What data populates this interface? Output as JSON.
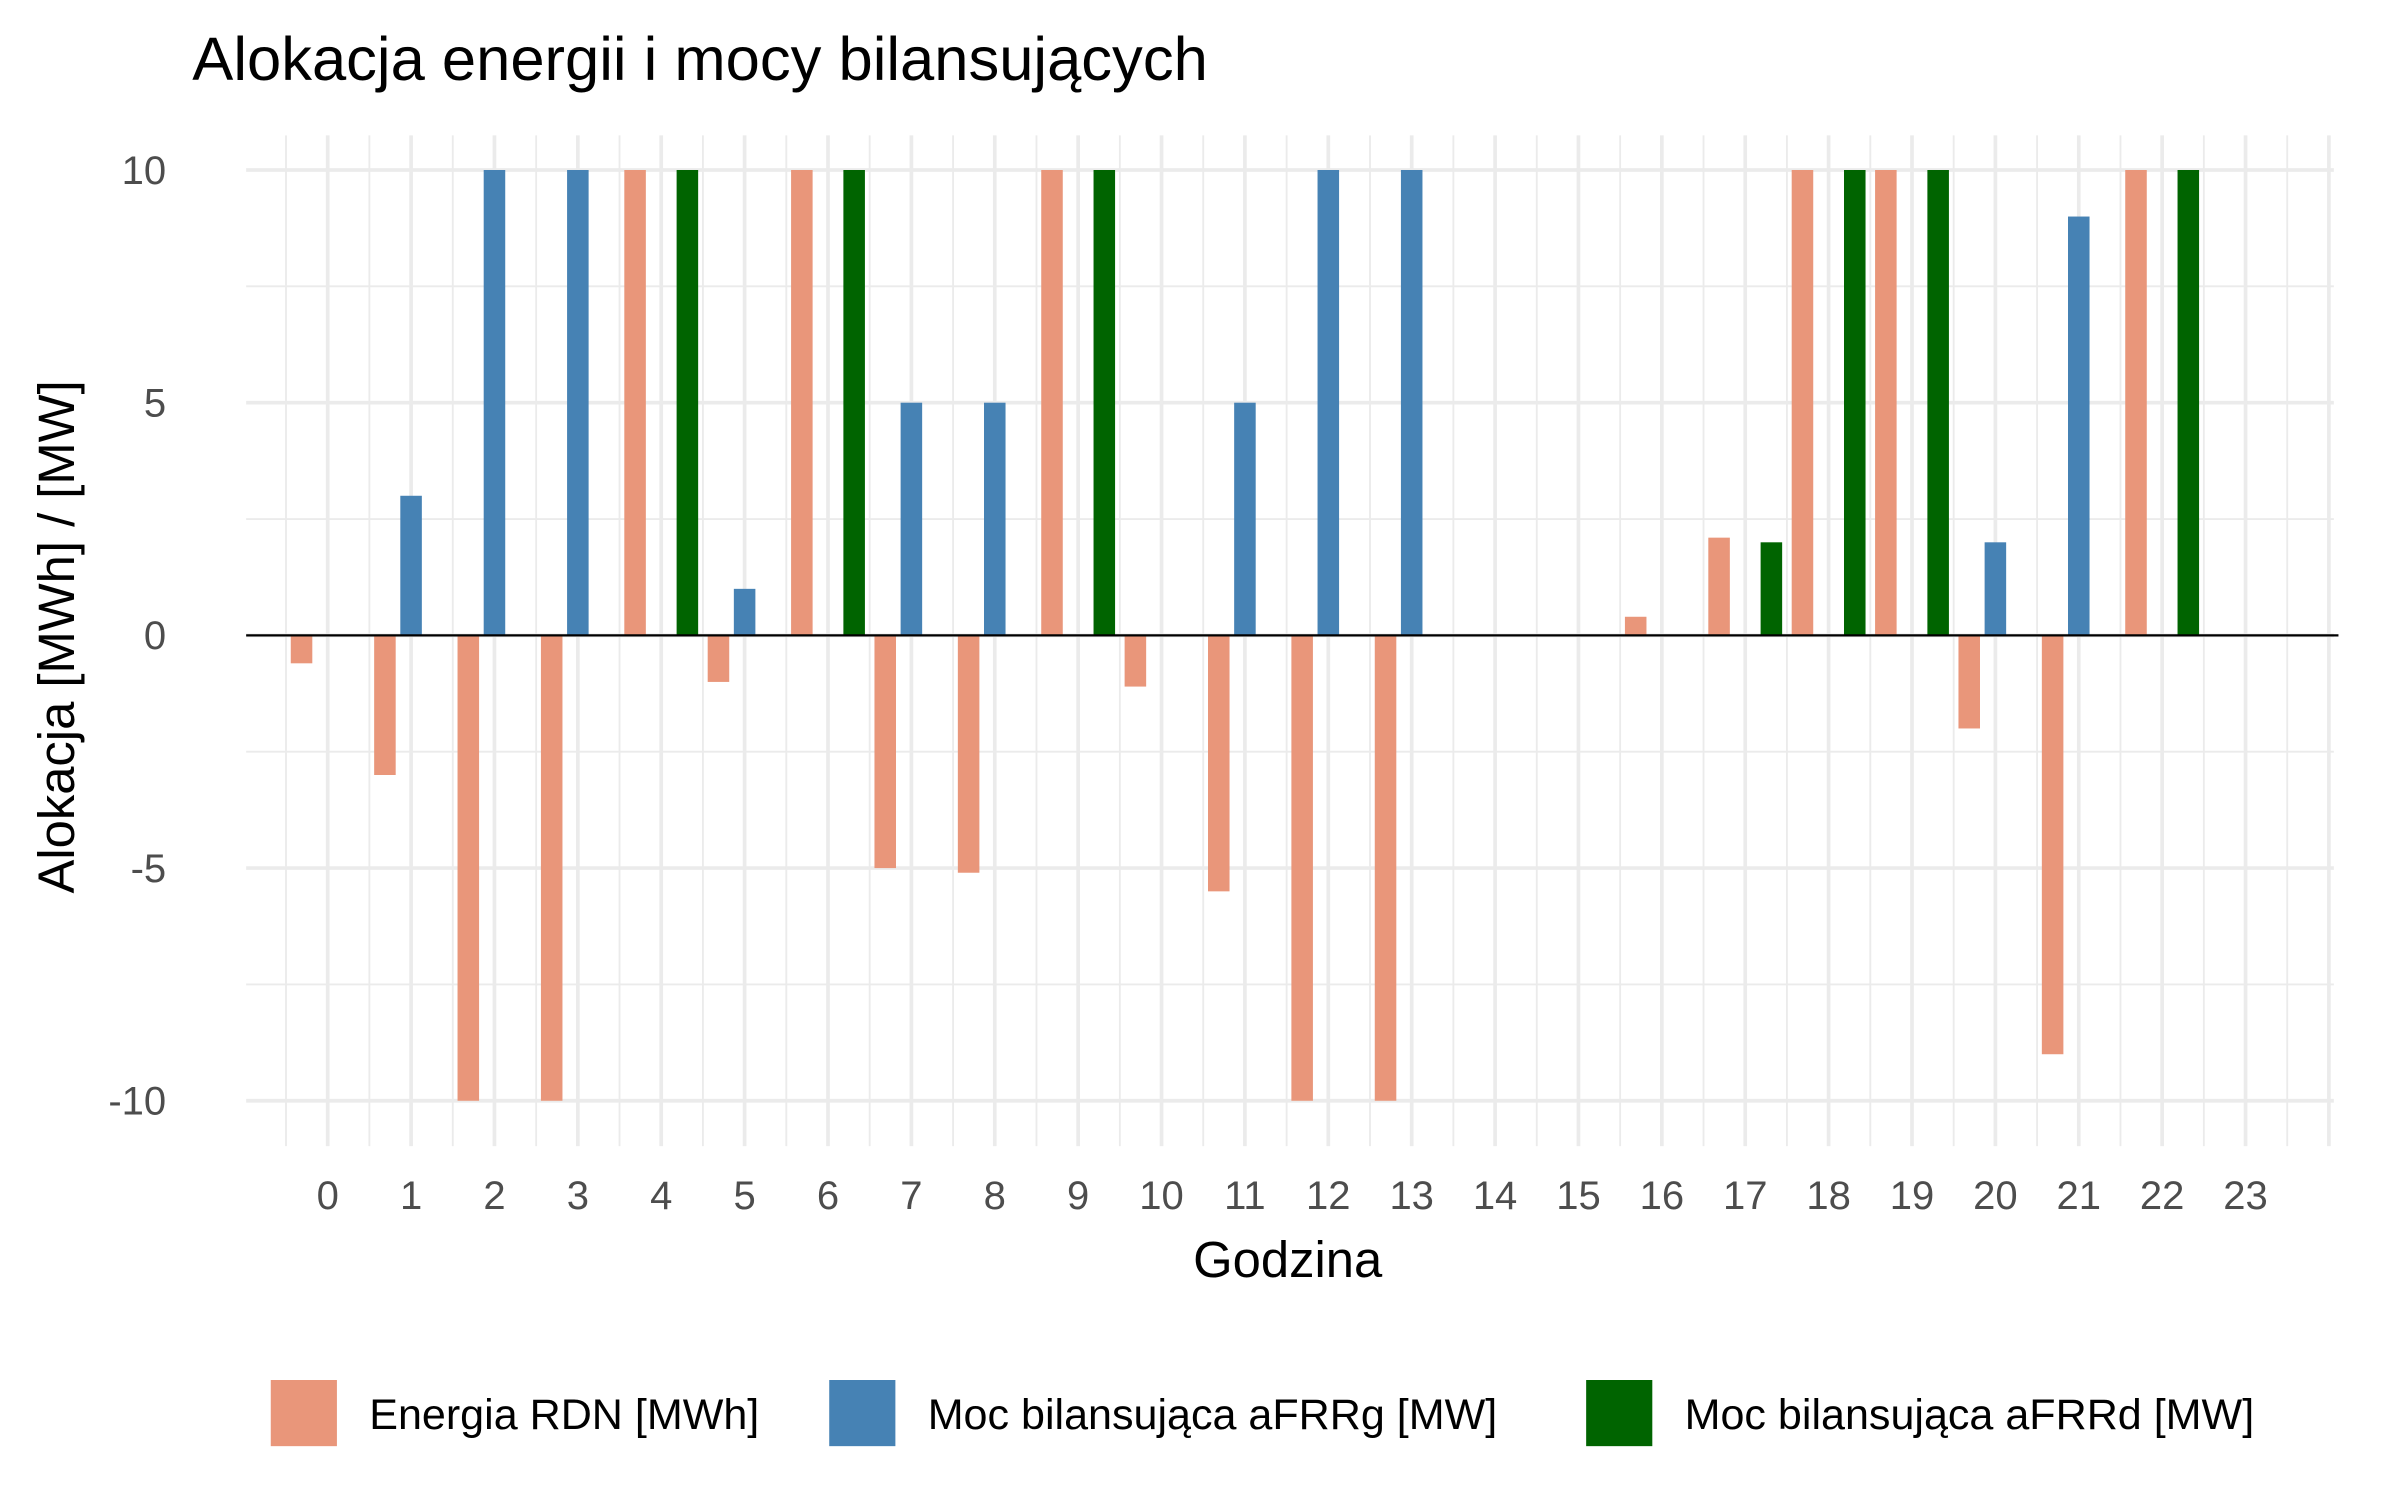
{
  "chart_data": {
    "type": "bar",
    "title": "Alokacja energii i mocy bilansujących",
    "xlabel": "Godzina",
    "ylabel": "Alokacja [MWh] / [MW]",
    "ylim": [
      -10,
      10
    ],
    "yticks": [
      "-10",
      "-5",
      "0",
      "5",
      "10"
    ],
    "grid": true,
    "legend_position": "bottom",
    "categories": [
      "0",
      "1",
      "2",
      "3",
      "4",
      "5",
      "6",
      "7",
      "8",
      "9",
      "10",
      "11",
      "12",
      "13",
      "14",
      "15",
      "16",
      "17",
      "18",
      "19",
      "20",
      "21",
      "22",
      "23"
    ],
    "series": [
      {
        "name": "Energia RDN [MWh]",
        "color": "#E9967A",
        "values": [
          -0.6,
          -3,
          -10,
          -10,
          10,
          -1,
          10,
          -5,
          -5.1,
          10,
          -1.1,
          -5.5,
          -10,
          -10,
          0,
          0,
          0.4,
          2.1,
          10,
          10,
          -2,
          -9,
          10,
          0
        ]
      },
      {
        "name": "Moc bilansująca aFRRg [MW]",
        "color": "#4682B4",
        "values": [
          0,
          3,
          10,
          10,
          0,
          1,
          0,
          5,
          5,
          0,
          0,
          5,
          10,
          10,
          0,
          0,
          0,
          0,
          0,
          0,
          2,
          9,
          0,
          0
        ]
      },
      {
        "name": "Moc bilansująca aFRRd [MW]",
        "color": "#006400",
        "values": [
          0,
          0,
          0,
          0,
          10,
          0,
          10,
          0,
          0,
          10,
          0,
          0,
          0,
          0,
          0,
          0,
          0,
          2,
          10,
          10,
          0,
          0,
          10,
          0
        ]
      }
    ]
  }
}
